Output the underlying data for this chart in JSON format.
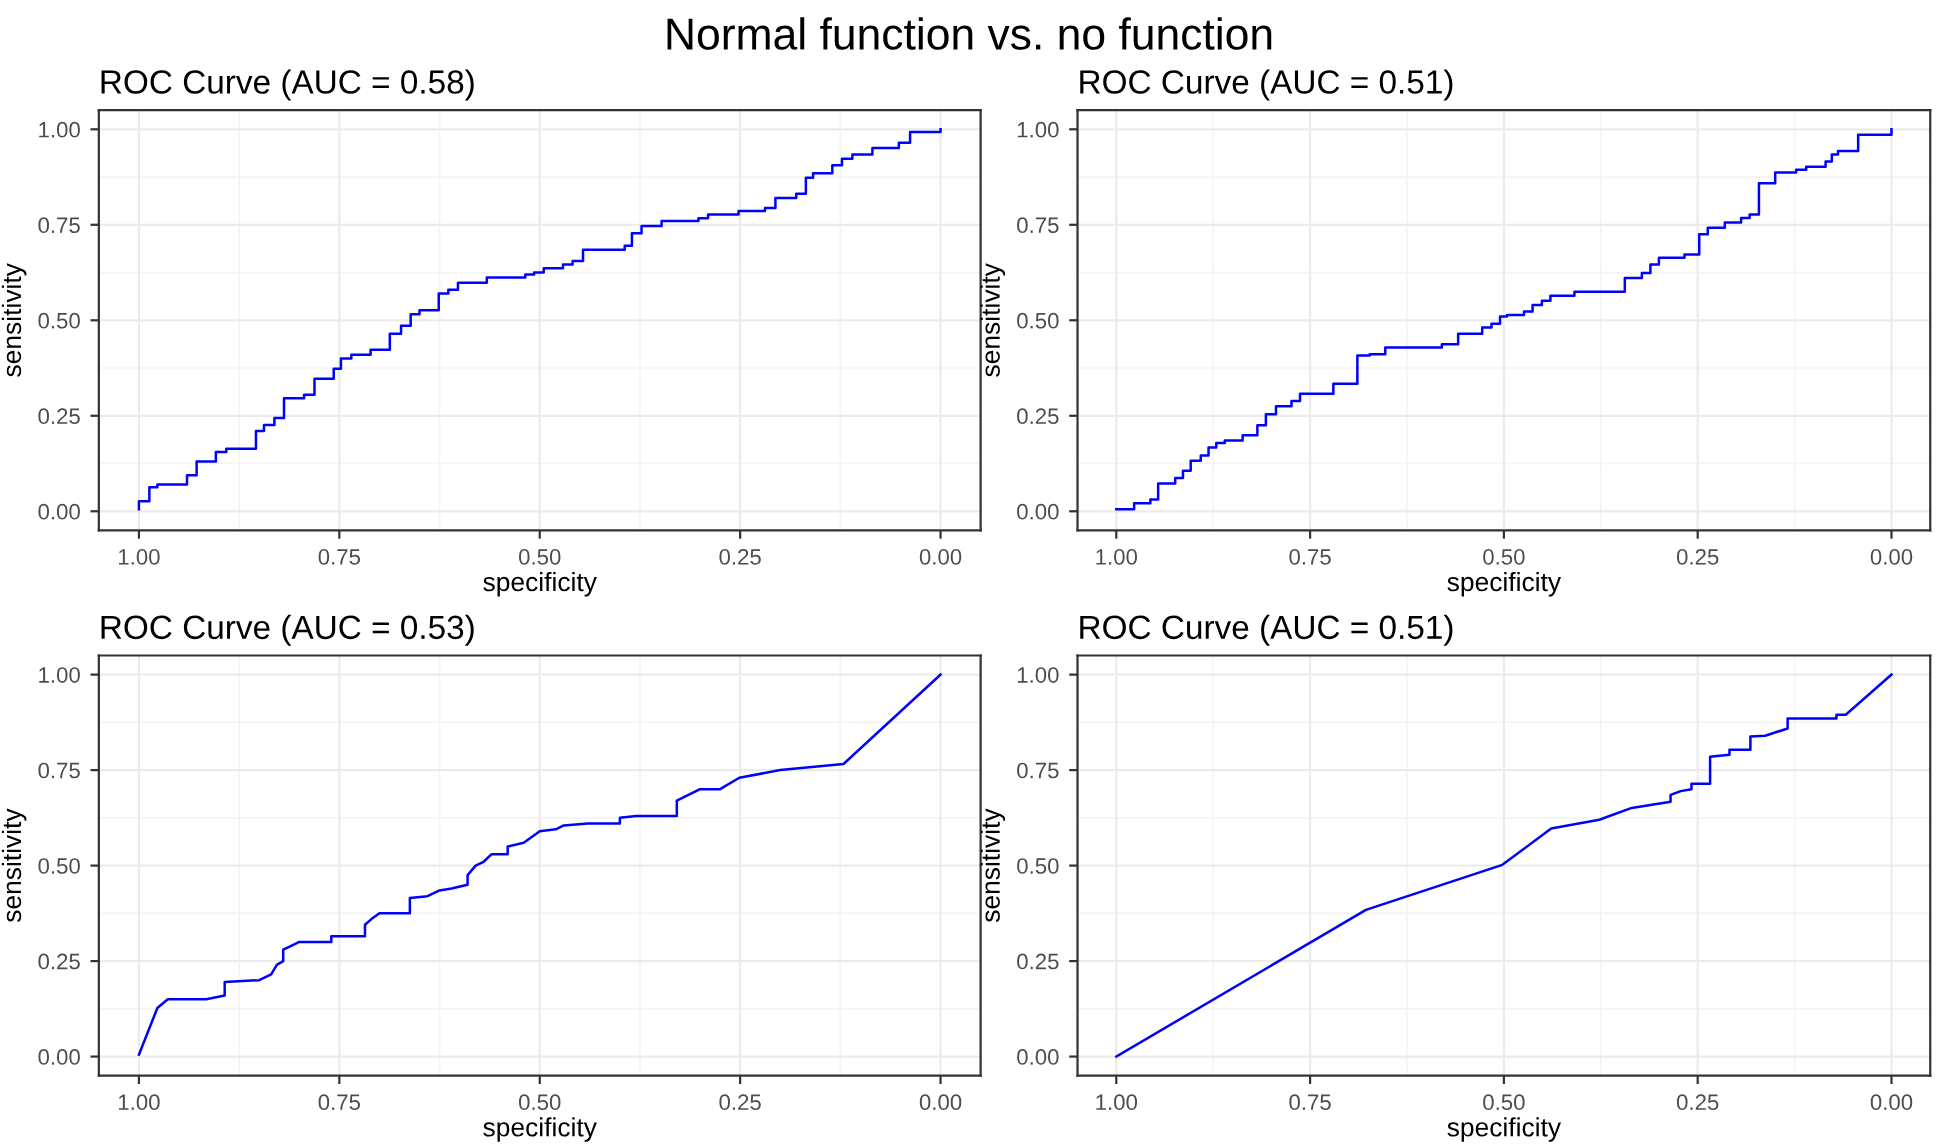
{
  "chart_data": [
    {
      "type": "step",
      "title": "ROC Curve (AUC = 0.58)",
      "xlabel": "specificity",
      "ylabel": "sensitivity",
      "annotations": [
        "Normal function vs. no function"
      ],
      "xlim": [
        1.05,
        -0.05
      ],
      "ylim": [
        -0.05,
        1.05
      ],
      "xticks": [
        {
          "value": 1.0,
          "label": "1.00"
        },
        {
          "value": 0.75,
          "label": "0.75"
        },
        {
          "value": 0.5,
          "label": "0.50"
        },
        {
          "value": 0.25,
          "label": "0.25"
        },
        {
          "value": 0.0,
          "label": "0.00"
        }
      ],
      "yticks": [
        {
          "value": 0.0,
          "label": "0.00"
        },
        {
          "value": 0.25,
          "label": "0.25"
        },
        {
          "value": 0.5,
          "label": "0.50"
        },
        {
          "value": 0.75,
          "label": "0.75"
        },
        {
          "value": 1.0,
          "label": "1.00"
        }
      ],
      "grid": true,
      "series": [
        {
          "color": "#0000ff",
          "x": [
            1.0,
            1.0,
            0.987,
            0.977,
            0.94,
            0.928,
            0.904,
            0.891,
            0.854,
            0.844,
            0.831,
            0.819,
            0.794,
            0.781,
            0.757,
            0.748,
            0.735,
            0.711,
            0.687,
            0.673,
            0.661,
            0.65,
            0.626,
            0.614,
            0.602,
            0.566,
            0.518,
            0.507,
            0.495,
            0.471,
            0.459,
            0.446,
            0.394,
            0.385,
            0.373,
            0.348,
            0.302,
            0.29,
            0.252,
            0.219,
            0.206,
            0.18,
            0.168,
            0.159,
            0.135,
            0.123,
            0.11,
            0.085,
            0.052,
            0.038,
            0.0
          ],
          "values": [
            0.005,
            0.026,
            0.063,
            0.07,
            0.094,
            0.13,
            0.155,
            0.164,
            0.21,
            0.226,
            0.244,
            0.296,
            0.305,
            0.347,
            0.373,
            0.4,
            0.41,
            0.423,
            0.465,
            0.486,
            0.516,
            0.526,
            0.57,
            0.58,
            0.598,
            0.612,
            0.62,
            0.625,
            0.636,
            0.646,
            0.655,
            0.685,
            0.695,
            0.728,
            0.747,
            0.76,
            0.767,
            0.777,
            0.786,
            0.794,
            0.82,
            0.831,
            0.873,
            0.885,
            0.906,
            0.923,
            0.934,
            0.951,
            0.965,
            0.993,
            1.0
          ]
        }
      ]
    },
    {
      "type": "step",
      "title": "ROC Curve (AUC = 0.51)",
      "xlabel": "specificity",
      "ylabel": "sensitivity",
      "xlim": [
        1.05,
        -0.05
      ],
      "ylim": [
        -0.05,
        1.05
      ],
      "xticks": [
        {
          "value": 1.0,
          "label": "1.00"
        },
        {
          "value": 0.75,
          "label": "0.75"
        },
        {
          "value": 0.5,
          "label": "0.50"
        },
        {
          "value": 0.25,
          "label": "0.25"
        },
        {
          "value": 0.0,
          "label": "0.00"
        }
      ],
      "yticks": [
        {
          "value": 0.0,
          "label": "0.00"
        },
        {
          "value": 0.25,
          "label": "0.25"
        },
        {
          "value": 0.5,
          "label": "0.50"
        },
        {
          "value": 0.75,
          "label": "0.75"
        },
        {
          "value": 1.0,
          "label": "1.00"
        }
      ],
      "grid": true,
      "series": [
        {
          "color": "#0000ff",
          "x": [
            1.0,
            0.977,
            0.956,
            0.946,
            0.924,
            0.914,
            0.904,
            0.891,
            0.881,
            0.871,
            0.86,
            0.837,
            0.818,
            0.807,
            0.794,
            0.774,
            0.763,
            0.72,
            0.689,
            0.673,
            0.653,
            0.58,
            0.559,
            0.528,
            0.516,
            0.505,
            0.496,
            0.474,
            0.463,
            0.451,
            0.44,
            0.409,
            0.344,
            0.322,
            0.311,
            0.3,
            0.267,
            0.248,
            0.237,
            0.215,
            0.194,
            0.183,
            0.171,
            0.15,
            0.123,
            0.11,
            0.085,
            0.077,
            0.069,
            0.043,
            0.0
          ],
          "values": [
            0.005,
            0.021,
            0.031,
            0.073,
            0.087,
            0.106,
            0.132,
            0.146,
            0.167,
            0.179,
            0.185,
            0.199,
            0.225,
            0.254,
            0.275,
            0.289,
            0.308,
            0.334,
            0.408,
            0.411,
            0.429,
            0.437,
            0.465,
            0.481,
            0.491,
            0.51,
            0.514,
            0.523,
            0.54,
            0.551,
            0.564,
            0.575,
            0.611,
            0.624,
            0.646,
            0.664,
            0.672,
            0.725,
            0.742,
            0.756,
            0.768,
            0.777,
            0.859,
            0.887,
            0.894,
            0.902,
            0.916,
            0.934,
            0.943,
            0.986,
            1.0
          ]
        }
      ]
    },
    {
      "type": "line",
      "title": "ROC Curve (AUC = 0.53)",
      "xlabel": "specificity",
      "ylabel": "sensitivity",
      "xlim": [
        1.05,
        -0.05
      ],
      "ylim": [
        -0.05,
        1.05
      ],
      "xticks": [
        {
          "value": 1.0,
          "label": "1.00"
        },
        {
          "value": 0.75,
          "label": "0.75"
        },
        {
          "value": 0.5,
          "label": "0.50"
        },
        {
          "value": 0.25,
          "label": "0.25"
        },
        {
          "value": 0.0,
          "label": "0.00"
        }
      ],
      "yticks": [
        {
          "value": 0.0,
          "label": "0.00"
        },
        {
          "value": 0.25,
          "label": "0.25"
        },
        {
          "value": 0.5,
          "label": "0.50"
        },
        {
          "value": 0.75,
          "label": "0.75"
        },
        {
          "value": 1.0,
          "label": "1.00"
        }
      ],
      "grid": true,
      "series": [
        {
          "color": "#0000ff",
          "x": [
            1.0,
            0.977,
            0.964,
            0.916,
            0.893,
            0.893,
            0.85,
            0.835,
            0.828,
            0.82,
            0.82,
            0.81,
            0.8,
            0.76,
            0.76,
            0.718,
            0.718,
            0.71,
            0.7,
            0.662,
            0.662,
            0.64,
            0.625,
            0.61,
            0.59,
            0.59,
            0.58,
            0.57,
            0.56,
            0.54,
            0.54,
            0.52,
            0.51,
            0.5,
            0.48,
            0.47,
            0.44,
            0.4,
            0.4,
            0.38,
            0.329,
            0.329,
            0.3,
            0.275,
            0.251,
            0.2,
            0.121,
            0.0
          ],
          "values": [
            0.005,
            0.127,
            0.15,
            0.15,
            0.16,
            0.195,
            0.2,
            0.215,
            0.24,
            0.25,
            0.28,
            0.29,
            0.3,
            0.3,
            0.315,
            0.315,
            0.345,
            0.36,
            0.375,
            0.375,
            0.415,
            0.42,
            0.435,
            0.44,
            0.45,
            0.475,
            0.5,
            0.51,
            0.53,
            0.53,
            0.55,
            0.56,
            0.575,
            0.59,
            0.595,
            0.605,
            0.61,
            0.61,
            0.625,
            0.63,
            0.63,
            0.67,
            0.7,
            0.7,
            0.73,
            0.75,
            0.766,
            1.0
          ]
        }
      ]
    },
    {
      "type": "line",
      "title": "ROC Curve (AUC = 0.51)",
      "xlabel": "specificity",
      "ylabel": "sensitivity",
      "xlim": [
        1.05,
        -0.05
      ],
      "ylim": [
        -0.05,
        1.05
      ],
      "xticks": [
        {
          "value": 1.0,
          "label": "1.00"
        },
        {
          "value": 0.75,
          "label": "0.75"
        },
        {
          "value": 0.5,
          "label": "0.50"
        },
        {
          "value": 0.25,
          "label": "0.25"
        },
        {
          "value": 0.0,
          "label": "0.00"
        }
      ],
      "yticks": [
        {
          "value": 0.0,
          "label": "0.00"
        },
        {
          "value": 0.25,
          "label": "0.25"
        },
        {
          "value": 0.5,
          "label": "0.50"
        },
        {
          "value": 0.75,
          "label": "0.75"
        },
        {
          "value": 1.0,
          "label": "1.00"
        }
      ],
      "grid": true,
      "series": [
        {
          "color": "#0000ff",
          "x": [
            1.0,
            0.678,
            0.502,
            0.439,
            0.377,
            0.335,
            0.285,
            0.285,
            0.272,
            0.258,
            0.258,
            0.234,
            0.234,
            0.209,
            0.209,
            0.182,
            0.182,
            0.163,
            0.134,
            0.134,
            0.071,
            0.071,
            0.059,
            0.0
          ],
          "values": [
            0.0,
            0.384,
            0.502,
            0.597,
            0.62,
            0.651,
            0.667,
            0.685,
            0.695,
            0.7,
            0.714,
            0.714,
            0.785,
            0.79,
            0.803,
            0.803,
            0.838,
            0.84,
            0.859,
            0.885,
            0.885,
            0.895,
            0.895,
            1.0
          ]
        }
      ]
    }
  ]
}
